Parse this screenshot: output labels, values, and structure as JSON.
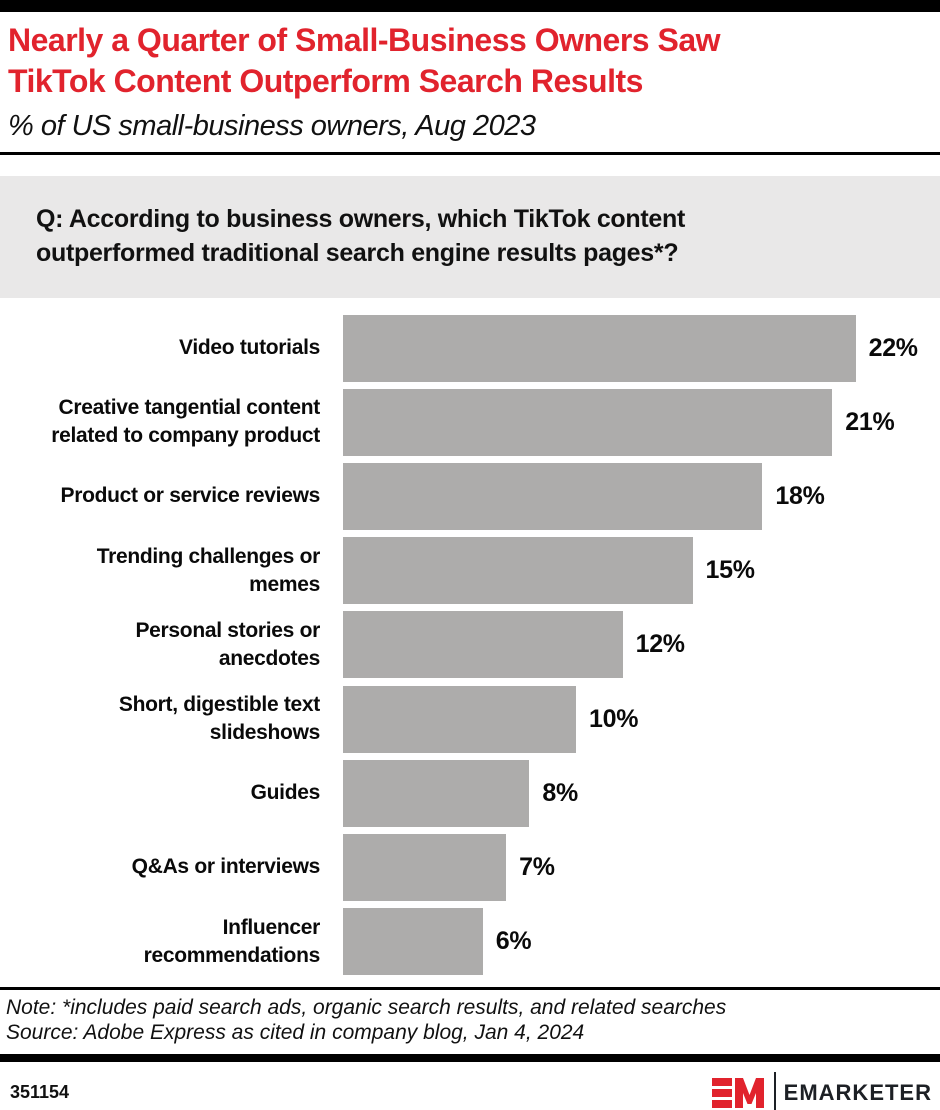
{
  "header": {
    "title": "Nearly a Quarter of Small-Business Owners Saw\nTikTok Content Outperform Search Results",
    "subtitle": "% of US small-business owners, Aug 2023"
  },
  "question": "Q: According to business owners, which TikTok content outperformed traditional search engine results pages*?",
  "chart_data": {
    "type": "bar",
    "orientation": "horizontal",
    "title": "Nearly a Quarter of Small-Business Owners Saw TikTok Content Outperform Search Results",
    "subtitle": "% of US small-business owners, Aug 2023",
    "categories": [
      [
        "Video tutorials"
      ],
      [
        "Creative tangential content",
        "related to company product"
      ],
      [
        "Product or service reviews"
      ],
      [
        "Trending challenges or",
        "memes"
      ],
      [
        "Personal stories or",
        "anecdotes"
      ],
      [
        "Short, digestible text",
        "slideshows"
      ],
      [
        "Guides"
      ],
      [
        "Q&As or interviews"
      ],
      [
        "Influencer",
        "recommendations"
      ]
    ],
    "values": [
      22,
      21,
      18,
      15,
      12,
      10,
      8,
      7,
      6
    ],
    "value_suffix": "%",
    "xlim": [
      0,
      24
    ],
    "grid": false,
    "legend": "none",
    "bar_color": "#adacab"
  },
  "footnote": {
    "note": "Note: *includes paid search ads, organic search results, and related searches",
    "source": "Source: Adobe Express as cited in company blog, Jan 4, 2024"
  },
  "footer": {
    "chart_id": "351154",
    "brand": "EMARKETER"
  },
  "colors": {
    "accent_red": "#e1232d",
    "bar_gray": "#adacab",
    "question_bg": "#e9e8e8",
    "brand_text": "#1d2025"
  }
}
